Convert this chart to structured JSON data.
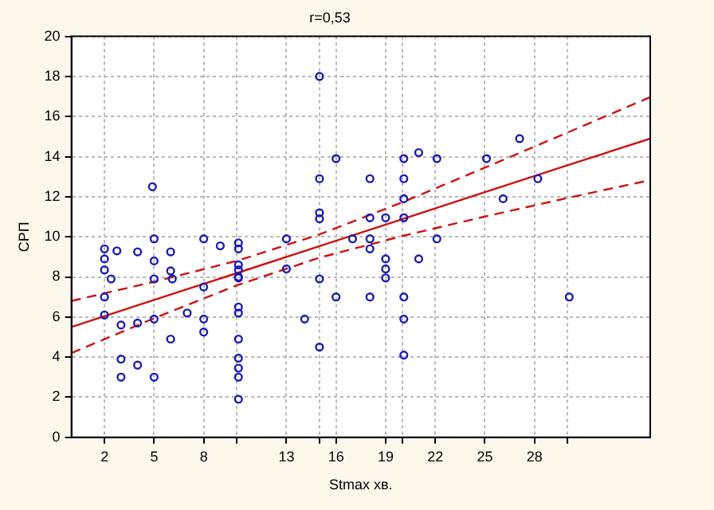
{
  "chart_data": {
    "type": "scatter",
    "title": "r=0,53",
    "xlabel": "Stmax хв.",
    "ylabel": "СРП",
    "xlim": [
      0,
      35
    ],
    "ylim": [
      0,
      20
    ],
    "xticks": [
      2,
      5,
      8,
      {
        "value": 10,
        "label": null
      },
      13,
      {
        "value": 15,
        "label": null
      },
      16,
      19,
      {
        "value": 20,
        "label": null
      },
      22,
      25,
      28,
      {
        "value": 30,
        "label": null
      }
    ],
    "yticks": [
      0,
      2,
      4,
      6,
      8,
      10,
      12,
      14,
      16,
      18,
      20
    ],
    "grid": true,
    "legend": false,
    "marker": "circle",
    "series": [
      {
        "color": "#1a1ab4",
        "x": [
          2.0,
          2.0,
          2.0,
          2.0,
          2.0,
          2.75,
          2.4,
          3.0,
          3.0,
          3.0,
          4.0,
          4.0,
          4.0,
          5.0,
          5.0,
          5.0,
          5.0,
          5.0,
          4.9,
          6.0,
          6.0,
          6.1,
          6.0,
          7.0,
          8.0,
          8.0,
          8.0,
          8.0,
          9.0,
          10.1,
          10.1,
          10.1,
          10.1,
          10.1,
          10.1,
          10.1,
          10.1,
          10.1,
          10.1,
          10.1,
          10.1,
          10.1,
          13.0,
          13.0,
          14.1,
          15.0,
          15.0,
          15.0,
          15.0,
          15.0,
          15.0,
          16.0,
          16.0,
          17.0,
          18.05,
          18.05,
          18.05,
          18.05,
          18.05,
          19.0,
          19.0,
          19.0,
          19.0,
          20.1,
          20.1,
          20.1,
          20.1,
          20.1,
          20.1,
          20.1,
          21.0,
          21.0,
          22.1,
          22.1,
          25.1,
          26.1,
          27.1,
          28.2,
          30.1
        ],
        "values": [
          9.4,
          8.9,
          8.35,
          7.0,
          6.1,
          9.3,
          7.9,
          5.6,
          3.9,
          3.0,
          9.25,
          5.7,
          3.6,
          9.9,
          8.8,
          7.9,
          5.9,
          3.0,
          12.5,
          9.25,
          8.3,
          7.9,
          4.9,
          6.2,
          9.9,
          7.5,
          5.9,
          5.25,
          9.55,
          9.7,
          9.4,
          8.6,
          8.35,
          8.0,
          7.95,
          6.5,
          6.2,
          4.9,
          3.95,
          3.45,
          3.0,
          1.9,
          9.9,
          8.4,
          5.9,
          18.0,
          12.9,
          11.2,
          10.9,
          7.9,
          4.5,
          13.9,
          7.0,
          9.9,
          12.9,
          10.95,
          9.9,
          9.4,
          7.0,
          10.95,
          8.9,
          8.4,
          7.95,
          13.9,
          12.9,
          11.9,
          10.95,
          7.0,
          5.9,
          4.1,
          14.2,
          8.9,
          13.9,
          9.9,
          13.9,
          11.9,
          14.9,
          12.9,
          7.0
        ]
      },
      {
        "type": "line",
        "color": "#d01010",
        "marker": "none",
        "line_style": "solid",
        "x": [
          0,
          5,
          10,
          15,
          20,
          25,
          30,
          35
        ],
        "values": [
          5.5,
          6.85,
          8.19,
          9.54,
          10.88,
          12.23,
          13.57,
          14.9
        ]
      },
      {
        "type": "line",
        "color": "#d01010",
        "marker": "none",
        "line_style": "dashed",
        "x": [
          0,
          5,
          10,
          15,
          20,
          25,
          30,
          35
        ],
        "values": [
          4.2,
          5.94,
          7.58,
          8.96,
          10.04,
          11.01,
          11.94,
          12.83
        ]
      },
      {
        "type": "line",
        "color": "#d01010",
        "marker": "none",
        "line_style": "dashed",
        "x": [
          0,
          5,
          10,
          15,
          20,
          25,
          30,
          35
        ],
        "values": [
          6.8,
          7.76,
          8.8,
          10.12,
          11.72,
          13.45,
          15.2,
          16.97
        ]
      }
    ]
  }
}
